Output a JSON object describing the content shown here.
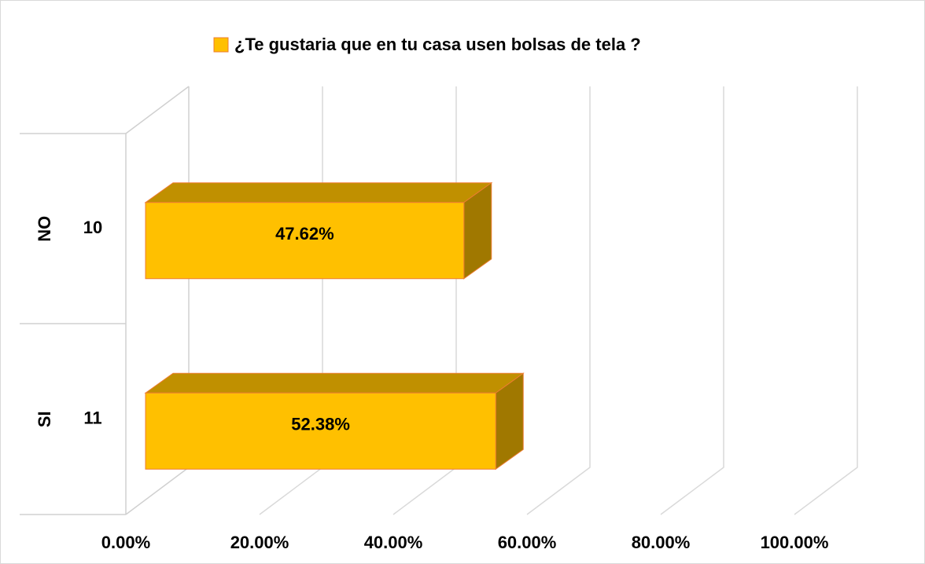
{
  "chart_data": {
    "type": "bar3d",
    "orientation": "horizontal",
    "categories": [
      "NO",
      "SI"
    ],
    "sublabels": [
      "10",
      "11"
    ],
    "series": [
      {
        "name": "¿Te gustaria que en tu casa usen bolsas de tela ?",
        "color": "#FFC000",
        "values": [
          47.62,
          52.38
        ],
        "value_labels": [
          "47.62%",
          "52.38%"
        ]
      }
    ],
    "xlim": [
      0,
      100
    ],
    "xticks": [
      {
        "value": 0,
        "label": "0.00%"
      },
      {
        "value": 20,
        "label": "20.00%"
      },
      {
        "value": 40,
        "label": "40.00%"
      },
      {
        "value": 60,
        "label": "60.00%"
      },
      {
        "value": 80,
        "label": "80.00%"
      },
      {
        "value": 100,
        "label": "100.00%"
      }
    ],
    "grid": true,
    "legend": "top"
  }
}
